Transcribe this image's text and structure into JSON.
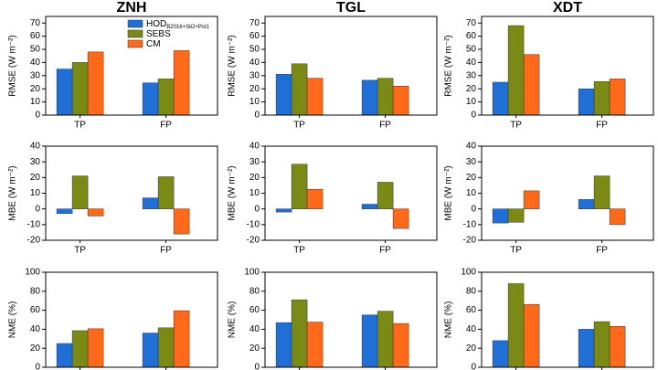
{
  "chart_data": [
    {
      "type": "bar",
      "title": "ZNH",
      "ylabel": "RMSE (W m⁻²)",
      "categories": [
        "TP",
        "FP"
      ],
      "legend": "upper center",
      "series": [
        {
          "name": "HOD",
          "name_sub": "B2016+Sti2+Pst1",
          "color": "#1f6fd6",
          "values": [
            35,
            24.5
          ]
        },
        {
          "name": "SEBS",
          "color": "#7a8a14",
          "values": [
            40,
            27.5
          ]
        },
        {
          "name": "CM",
          "color": "#ff6a1a",
          "values": [
            48,
            49
          ]
        }
      ],
      "ylim": [
        0,
        75
      ],
      "yticks": [
        0,
        10,
        20,
        30,
        40,
        50,
        60,
        70
      ]
    },
    {
      "type": "bar",
      "title": "TGL",
      "ylabel": "RMSE (W m⁻²)",
      "categories": [
        "TP",
        "FP"
      ],
      "series": [
        {
          "color": "#1f6fd6",
          "values": [
            31,
            26.5
          ]
        },
        {
          "color": "#7a8a14",
          "values": [
            39,
            28
          ]
        },
        {
          "color": "#ff6a1a",
          "values": [
            28,
            22
          ]
        }
      ],
      "ylim": [
        0,
        75
      ],
      "yticks": [
        0,
        10,
        20,
        30,
        40,
        50,
        60,
        70
      ]
    },
    {
      "type": "bar",
      "title": "XDT",
      "ylabel": "RMSE (W m⁻²)",
      "categories": [
        "TP",
        "FP"
      ],
      "series": [
        {
          "color": "#1f6fd6",
          "values": [
            25,
            20
          ]
        },
        {
          "color": "#7a8a14",
          "values": [
            68,
            25.5
          ]
        },
        {
          "color": "#ff6a1a",
          "values": [
            46,
            27.5
          ]
        }
      ],
      "ylim": [
        0,
        75
      ],
      "yticks": [
        0,
        10,
        20,
        30,
        40,
        50,
        60,
        70
      ]
    },
    {
      "type": "bar",
      "ylabel": "MBE (W m⁻²)",
      "categories": [
        "TP",
        "FP"
      ],
      "series": [
        {
          "color": "#1f6fd6",
          "values": [
            -3,
            7
          ]
        },
        {
          "color": "#7a8a14",
          "values": [
            21,
            20.5
          ]
        },
        {
          "color": "#ff6a1a",
          "values": [
            -4.5,
            -16
          ]
        }
      ],
      "ylim": [
        -20,
        40
      ],
      "yticks": [
        -20,
        -10,
        0,
        10,
        20,
        30,
        40
      ]
    },
    {
      "type": "bar",
      "ylabel": "MBE (W m⁻²)",
      "categories": [
        "TP",
        "FP"
      ],
      "series": [
        {
          "color": "#1f6fd6",
          "values": [
            -2,
            3
          ]
        },
        {
          "color": "#7a8a14",
          "values": [
            28.5,
            17
          ]
        },
        {
          "color": "#ff6a1a",
          "values": [
            12.5,
            -12.5
          ]
        }
      ],
      "ylim": [
        -20,
        40
      ],
      "yticks": [
        -20,
        -10,
        0,
        10,
        20,
        30,
        40
      ]
    },
    {
      "type": "bar",
      "ylabel": "MBE (W m⁻²)",
      "categories": [
        "TP",
        "FP"
      ],
      "series": [
        {
          "color": "#1f6fd6",
          "values": [
            -9,
            6
          ]
        },
        {
          "color": "#7a8a14",
          "values": [
            -8.5,
            21
          ]
        },
        {
          "color": "#ff6a1a",
          "values": [
            11.5,
            -10
          ]
        }
      ],
      "ylim": [
        -20,
        40
      ],
      "yticks": [
        -20,
        -10,
        0,
        10,
        20,
        30,
        40
      ]
    },
    {
      "type": "bar",
      "ylabel": "NME (%)",
      "categories": [
        null,
        null
      ],
      "series": [
        {
          "color": "#1f6fd6",
          "values": [
            25,
            36
          ]
        },
        {
          "color": "#7a8a14",
          "values": [
            38.5,
            41.5
          ]
        },
        {
          "color": "#ff6a1a",
          "values": [
            40.5,
            59.5
          ]
        }
      ],
      "ylim": [
        0,
        100
      ],
      "yticks": [
        0,
        20,
        40,
        60,
        80,
        100
      ]
    },
    {
      "type": "bar",
      "ylabel": "NME (%)",
      "categories": [
        null,
        null
      ],
      "series": [
        {
          "color": "#1f6fd6",
          "values": [
            47,
            55
          ]
        },
        {
          "color": "#7a8a14",
          "values": [
            71,
            59
          ]
        },
        {
          "color": "#ff6a1a",
          "values": [
            47.5,
            46
          ]
        }
      ],
      "ylim": [
        0,
        100
      ],
      "yticks": [
        0,
        20,
        40,
        60,
        80,
        100
      ]
    },
    {
      "type": "bar",
      "ylabel": "NME (%)",
      "categories": [
        null,
        null
      ],
      "series": [
        {
          "color": "#1f6fd6",
          "values": [
            28,
            40
          ]
        },
        {
          "color": "#7a8a14",
          "values": [
            88,
            48
          ]
        },
        {
          "color": "#ff6a1a",
          "values": [
            66,
            43
          ]
        }
      ],
      "ylim": [
        0,
        100
      ],
      "yticks": [
        0,
        20,
        40,
        60,
        80,
        100
      ]
    }
  ]
}
